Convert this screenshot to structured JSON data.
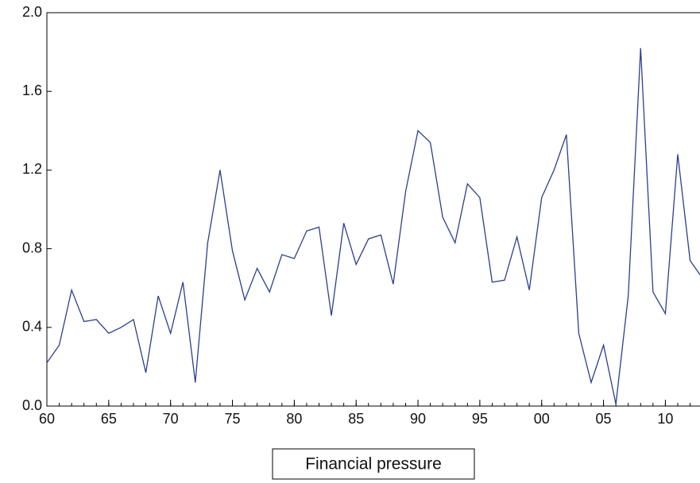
{
  "chart_data": {
    "type": "line",
    "x": [
      1960,
      1961,
      1962,
      1963,
      1964,
      1965,
      1966,
      1967,
      1968,
      1969,
      1970,
      1971,
      1972,
      1973,
      1974,
      1975,
      1976,
      1977,
      1978,
      1979,
      1980,
      1981,
      1982,
      1983,
      1984,
      1985,
      1986,
      1987,
      1988,
      1989,
      1990,
      1991,
      1992,
      1993,
      1994,
      1995,
      1996,
      1997,
      1998,
      1999,
      2000,
      2001,
      2002,
      2003,
      2004,
      2005,
      2006,
      2007,
      2008,
      2009,
      2010,
      2011,
      2012,
      2013
    ],
    "series": [
      {
        "name": "Financial pressure",
        "color": "#2b3f8f",
        "values": [
          0.22,
          0.31,
          0.59,
          0.43,
          0.44,
          0.37,
          0.4,
          0.44,
          0.17,
          0.56,
          0.37,
          0.63,
          0.12,
          0.83,
          1.2,
          0.79,
          0.54,
          0.7,
          0.58,
          0.77,
          0.75,
          0.89,
          0.91,
          0.46,
          0.93,
          0.72,
          0.85,
          0.87,
          0.62,
          1.09,
          1.4,
          1.34,
          0.96,
          0.83,
          1.13,
          1.06,
          0.63,
          0.64,
          0.86,
          0.59,
          1.06,
          1.2,
          1.38,
          0.37,
          0.12,
          0.31,
          0.01,
          0.56,
          1.82,
          0.58,
          0.47,
          1.28,
          0.74,
          0.65
        ]
      }
    ],
    "xlim": [
      1960,
      2012.8
    ],
    "xticks": [
      {
        "value": 1960,
        "label": "60"
      },
      {
        "value": 1965,
        "label": "65"
      },
      {
        "value": 1970,
        "label": "70"
      },
      {
        "value": 1975,
        "label": "75"
      },
      {
        "value": 1980,
        "label": "80"
      },
      {
        "value": 1985,
        "label": "85"
      },
      {
        "value": 1990,
        "label": "90"
      },
      {
        "value": 1995,
        "label": "95"
      },
      {
        "value": 2000,
        "label": "00"
      },
      {
        "value": 2005,
        "label": "05"
      },
      {
        "value": 2010,
        "label": "10"
      }
    ],
    "ylim": [
      0,
      2
    ],
    "yticks": [
      {
        "value": 0,
        "label": "0.0"
      },
      0.4,
      0.8,
      1.2,
      1.6,
      {
        "value": 2,
        "label": "2.0"
      }
    ],
    "legend": "bottom"
  }
}
